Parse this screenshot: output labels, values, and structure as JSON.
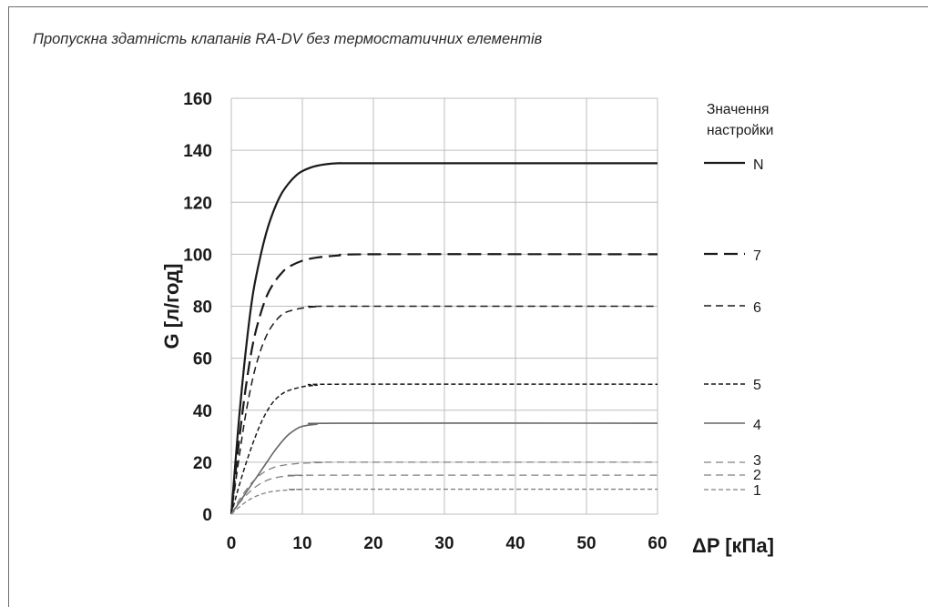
{
  "title": "Пропускна здатність клапанів RA-DV без термостатичних елементів",
  "chart_data": {
    "type": "line",
    "xlabel": "ΔP [кПа]",
    "ylabel": "G [л/год]",
    "xlim": [
      0,
      60
    ],
    "ylim": [
      0,
      160
    ],
    "xticks": [
      "0",
      "10",
      "20",
      "30",
      "40",
      "50",
      "60"
    ],
    "yticks": [
      "0",
      "20",
      "40",
      "60",
      "80",
      "100",
      "120",
      "140",
      "160"
    ],
    "grid": true,
    "legend_title": [
      "Значення",
      "настройки"
    ],
    "legend_position": "right",
    "series": [
      {
        "name": "N",
        "color": "#1a1a1a",
        "dash": "solid",
        "width": 2.2,
        "points": [
          [
            0,
            0
          ],
          [
            1,
            34
          ],
          [
            2,
            62
          ],
          [
            3,
            84
          ],
          [
            4,
            98
          ],
          [
            5,
            109
          ],
          [
            6,
            117
          ],
          [
            7,
            123
          ],
          [
            8,
            127
          ],
          [
            9,
            130
          ],
          [
            10,
            132
          ],
          [
            12,
            134
          ],
          [
            15,
            135
          ],
          [
            20,
            135
          ],
          [
            60,
            135
          ]
        ]
      },
      {
        "name": "7",
        "color": "#1a1a1a",
        "dash": "long-dash",
        "width": 2.2,
        "points": [
          [
            0,
            0
          ],
          [
            1,
            26
          ],
          [
            2,
            48
          ],
          [
            3,
            65
          ],
          [
            4,
            76
          ],
          [
            5,
            84
          ],
          [
            6,
            89
          ],
          [
            7,
            92.5
          ],
          [
            8,
            95
          ],
          [
            10,
            97.5
          ],
          [
            12,
            98.7
          ],
          [
            15,
            99.5
          ],
          [
            20,
            100
          ],
          [
            60,
            100
          ]
        ]
      },
      {
        "name": "6",
        "color": "#1a1a1a",
        "dash": "dash",
        "width": 1.5,
        "points": [
          [
            0,
            0
          ],
          [
            1,
            20
          ],
          [
            2,
            38
          ],
          [
            3,
            52
          ],
          [
            4,
            62
          ],
          [
            5,
            69
          ],
          [
            6,
            73.5
          ],
          [
            7,
            76.5
          ],
          [
            8,
            78
          ],
          [
            10,
            79.3
          ],
          [
            12,
            79.8
          ],
          [
            15,
            80
          ],
          [
            60,
            80
          ]
        ]
      },
      {
        "name": "5",
        "color": "#1a1a1a",
        "dash": "short-dash",
        "width": 1.5,
        "points": [
          [
            0,
            0
          ],
          [
            1,
            10
          ],
          [
            2,
            19
          ],
          [
            3,
            27
          ],
          [
            4,
            34
          ],
          [
            5,
            39.5
          ],
          [
            6,
            43.5
          ],
          [
            7,
            46
          ],
          [
            8,
            47.5
          ],
          [
            10,
            49
          ],
          [
            12,
            49.6
          ],
          [
            15,
            50
          ],
          [
            60,
            50
          ]
        ]
      },
      {
        "name": "4",
        "color": "#666666",
        "dash": "solid",
        "width": 1.6,
        "points": [
          [
            0,
            0
          ],
          [
            1,
            4
          ],
          [
            2,
            8
          ],
          [
            3,
            12
          ],
          [
            4,
            16
          ],
          [
            5,
            20
          ],
          [
            6,
            24
          ],
          [
            7,
            27.5
          ],
          [
            8,
            30.5
          ],
          [
            9,
            32.5
          ],
          [
            10,
            33.8
          ],
          [
            12,
            34.6
          ],
          [
            15,
            35
          ],
          [
            60,
            35
          ]
        ]
      },
      {
        "name": "3",
        "color": "#808080",
        "dash": "dash",
        "width": 1.3,
        "points": [
          [
            0,
            0
          ],
          [
            1,
            5
          ],
          [
            2,
            9
          ],
          [
            3,
            12.5
          ],
          [
            4,
            15
          ],
          [
            5,
            16.8
          ],
          [
            6,
            18
          ],
          [
            7,
            18.7
          ],
          [
            8,
            19.1
          ],
          [
            10,
            19.6
          ],
          [
            13,
            19.9
          ],
          [
            15,
            20
          ],
          [
            60,
            20
          ]
        ]
      },
      {
        "name": "2",
        "color": "#808080",
        "dash": "dash",
        "width": 1.3,
        "points": [
          [
            0,
            0
          ],
          [
            1,
            3.8
          ],
          [
            2,
            7
          ],
          [
            3,
            9.6
          ],
          [
            4,
            11.6
          ],
          [
            5,
            13
          ],
          [
            6,
            13.9
          ],
          [
            7,
            14.4
          ],
          [
            8,
            14.7
          ],
          [
            10,
            14.9
          ],
          [
            12,
            15
          ],
          [
            60,
            15
          ]
        ]
      },
      {
        "name": "1",
        "color": "#808080",
        "dash": "short-dash",
        "width": 1.3,
        "points": [
          [
            0,
            0
          ],
          [
            1,
            2.5
          ],
          [
            2,
            4.6
          ],
          [
            3,
            6.3
          ],
          [
            4,
            7.5
          ],
          [
            5,
            8.3
          ],
          [
            6,
            8.8
          ],
          [
            7,
            9.1
          ],
          [
            8,
            9.3
          ],
          [
            10,
            9.5
          ],
          [
            12,
            9.6
          ],
          [
            60,
            9.6
          ]
        ]
      }
    ]
  }
}
